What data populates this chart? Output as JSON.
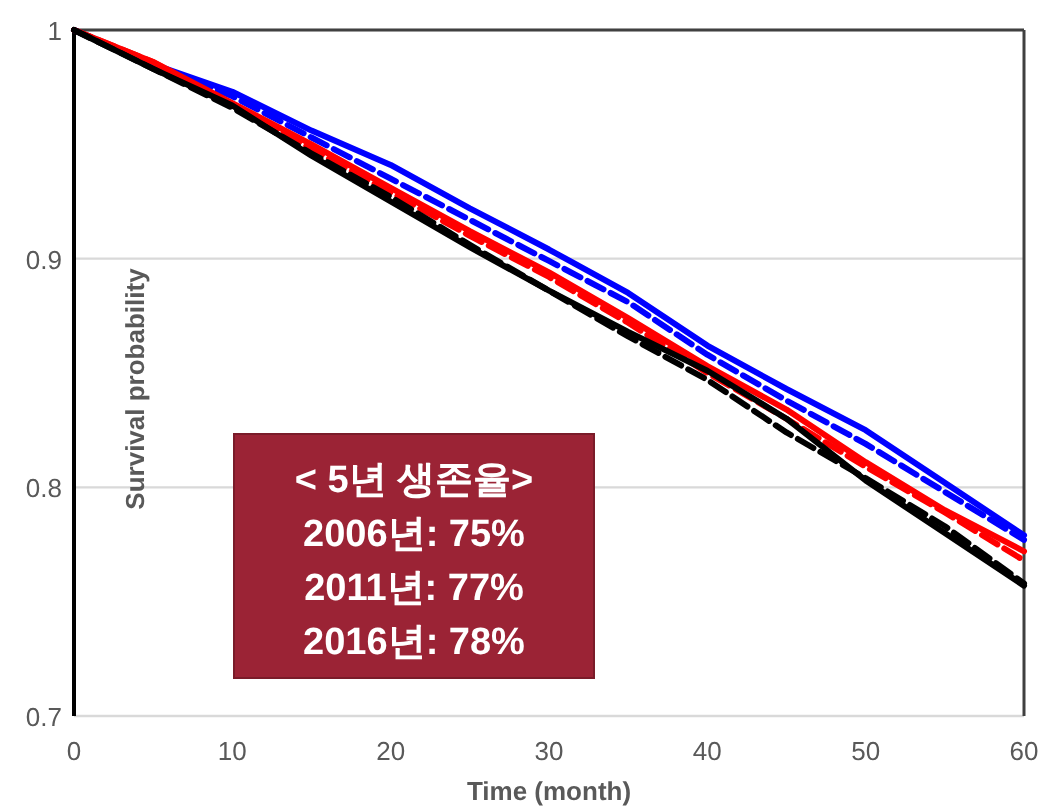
{
  "chart_data": {
    "type": "line",
    "xlabel": "Time (month)",
    "ylabel": "Survival probability",
    "x": [
      0,
      5,
      10,
      15,
      20,
      25,
      30,
      35,
      40,
      45,
      50,
      55,
      60
    ],
    "xlim": [
      0,
      60
    ],
    "xticks": [
      0,
      10,
      20,
      30,
      40,
      50,
      60
    ],
    "ylim": [
      0.7,
      1
    ],
    "yticks": [
      0.7,
      0.8,
      0.9,
      1
    ],
    "grid": "y",
    "series": [
      {
        "color": "#0000ff",
        "line_style": "solid",
        "values": [
          1.0,
          0.985,
          0.973,
          0.956,
          0.941,
          0.922,
          0.904,
          0.885,
          0.862,
          0.843,
          0.825,
          0.802,
          0.779
        ]
      },
      {
        "color": "#0000ff",
        "line_style": "dashed",
        "values": [
          1.0,
          0.985,
          0.971,
          0.953,
          0.935,
          0.917,
          0.899,
          0.881,
          0.858,
          0.838,
          0.819,
          0.798,
          0.777
        ]
      },
      {
        "color": "#ff0000",
        "line_style": "solid",
        "values": [
          1.0,
          0.986,
          0.968,
          0.95,
          0.931,
          0.912,
          0.894,
          0.874,
          0.853,
          0.834,
          0.811,
          0.79,
          0.772
        ]
      },
      {
        "color": "#ff0000",
        "line_style": "dashed",
        "values": [
          1.0,
          0.986,
          0.967,
          0.948,
          0.929,
          0.91,
          0.892,
          0.872,
          0.85,
          0.83,
          0.809,
          0.789,
          0.768
        ]
      },
      {
        "color": "#000000",
        "line_style": "solid",
        "values": [
          1.0,
          0.983,
          0.967,
          0.945,
          0.925,
          0.905,
          0.886,
          0.868,
          0.851,
          0.83,
          0.803,
          0.78,
          0.757
        ]
      },
      {
        "color": "#000000",
        "line_style": "dashed",
        "values": [
          1.0,
          0.983,
          0.966,
          0.946,
          0.927,
          0.906,
          0.886,
          0.866,
          0.847,
          0.824,
          0.804,
          0.783,
          0.758
        ]
      }
    ],
    "annotations": [
      "< 5년 생존율>",
      "2006년: 75%",
      "2011년: 77%",
      "2016년: 78%"
    ]
  }
}
